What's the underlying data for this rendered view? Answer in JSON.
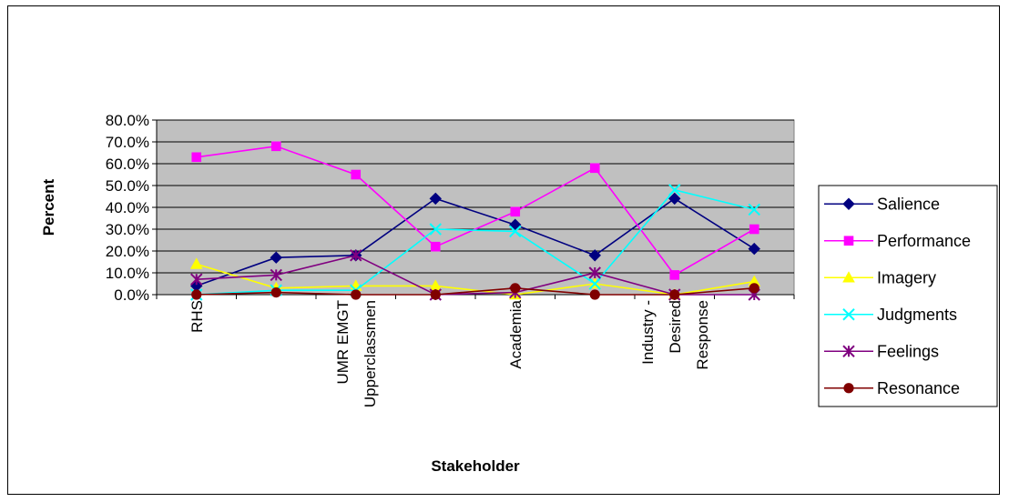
{
  "chart_data": {
    "type": "line",
    "title": "",
    "xlabel": "Stakeholder",
    "ylabel": "Percent",
    "ylim": [
      0,
      0.8
    ],
    "yticks": [
      "0.0%",
      "10.0%",
      "20.0%",
      "30.0%",
      "40.0%",
      "50.0%",
      "60.0%",
      "70.0%",
      "80.0%"
    ],
    "grid": true,
    "plot_background": "#c0c0c0",
    "legend_position": "right",
    "category_labels": [
      {
        "lines": [
          "RHS"
        ]
      },
      {
        "lines": []
      },
      {
        "lines": [
          "UMR EMGT",
          "Upperclassmen"
        ]
      },
      {
        "lines": []
      },
      {
        "lines": [
          "Academia"
        ]
      },
      {
        "lines": []
      },
      {
        "lines": [
          "Industry -",
          "Desired",
          "Response"
        ]
      },
      {
        "lines": []
      }
    ],
    "series": [
      {
        "name": "Salience",
        "color": "#000080",
        "marker": "diamond",
        "values": [
          0.04,
          0.17,
          0.18,
          0.44,
          0.32,
          0.18,
          0.44,
          0.21
        ]
      },
      {
        "name": "Performance",
        "color": "#ff00ff",
        "marker": "square",
        "values": [
          0.63,
          0.68,
          0.55,
          0.22,
          0.38,
          0.58,
          0.09,
          0.3
        ]
      },
      {
        "name": "Imagery",
        "color": "#ffff00",
        "marker": "triangle",
        "values": [
          0.14,
          0.03,
          0.04,
          0.04,
          0.0,
          0.05,
          0.0,
          0.06
        ]
      },
      {
        "name": "Judgments",
        "color": "#00ffff",
        "marker": "x",
        "values": [
          0.0,
          0.02,
          0.02,
          0.3,
          0.29,
          0.05,
          0.48,
          0.39
        ]
      },
      {
        "name": "Feelings",
        "color": "#800080",
        "marker": "star",
        "values": [
          0.07,
          0.09,
          0.18,
          0.0,
          0.01,
          0.1,
          0.0,
          0.0
        ]
      },
      {
        "name": "Resonance",
        "color": "#800000",
        "marker": "circle",
        "values": [
          0.0,
          0.01,
          0.0,
          0.0,
          0.03,
          0.0,
          0.0,
          0.03
        ]
      }
    ]
  }
}
